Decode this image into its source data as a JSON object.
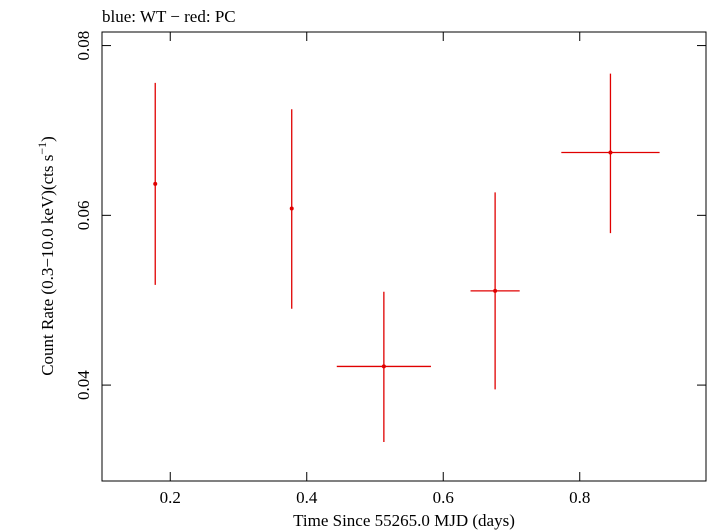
{
  "chart_data": {
    "type": "scatter",
    "title": "blue: WT − red: PC",
    "xlabel": "Time Since 55265.0 MJD (days)",
    "ylabel_main": "Count Rate (0.3−10.0 keV)(cts s",
    "ylabel_sup": "−1",
    "ylabel_end": ")",
    "xlim": [
      0.1,
      0.985
    ],
    "ylim": [
      0.0287,
      0.0816
    ],
    "x_ticks": [
      0.2,
      0.4,
      0.6,
      0.8
    ],
    "x_tick_labels": [
      "0.2",
      "0.4",
      "0.6",
      "0.8"
    ],
    "y_ticks": [
      0.04,
      0.06,
      0.08
    ],
    "y_tick_labels": [
      "0.04",
      "0.06",
      "0.08"
    ],
    "grid": false,
    "series": [
      {
        "color": "#e00000",
        "points": [
          {
            "x": 0.178,
            "xerr_lo": 0.002,
            "xerr_hi": 0.002,
            "y": 0.0637,
            "y_lo": 0.0518,
            "y_hi": 0.0756
          },
          {
            "x": 0.378,
            "xerr_lo": 0.002,
            "xerr_hi": 0.002,
            "y": 0.0608,
            "y_lo": 0.049,
            "y_hi": 0.0725
          },
          {
            "x": 0.513,
            "xerr_lo": 0.069,
            "xerr_hi": 0.069,
            "y": 0.0422,
            "y_lo": 0.0333,
            "y_hi": 0.051
          },
          {
            "x": 0.676,
            "xerr_lo": 0.036,
            "xerr_hi": 0.036,
            "y": 0.0511,
            "y_lo": 0.0395,
            "y_hi": 0.0627
          },
          {
            "x": 0.845,
            "xerr_lo": 0.072,
            "xerr_hi": 0.072,
            "y": 0.0674,
            "y_lo": 0.0579,
            "y_hi": 0.0767
          }
        ]
      }
    ]
  }
}
